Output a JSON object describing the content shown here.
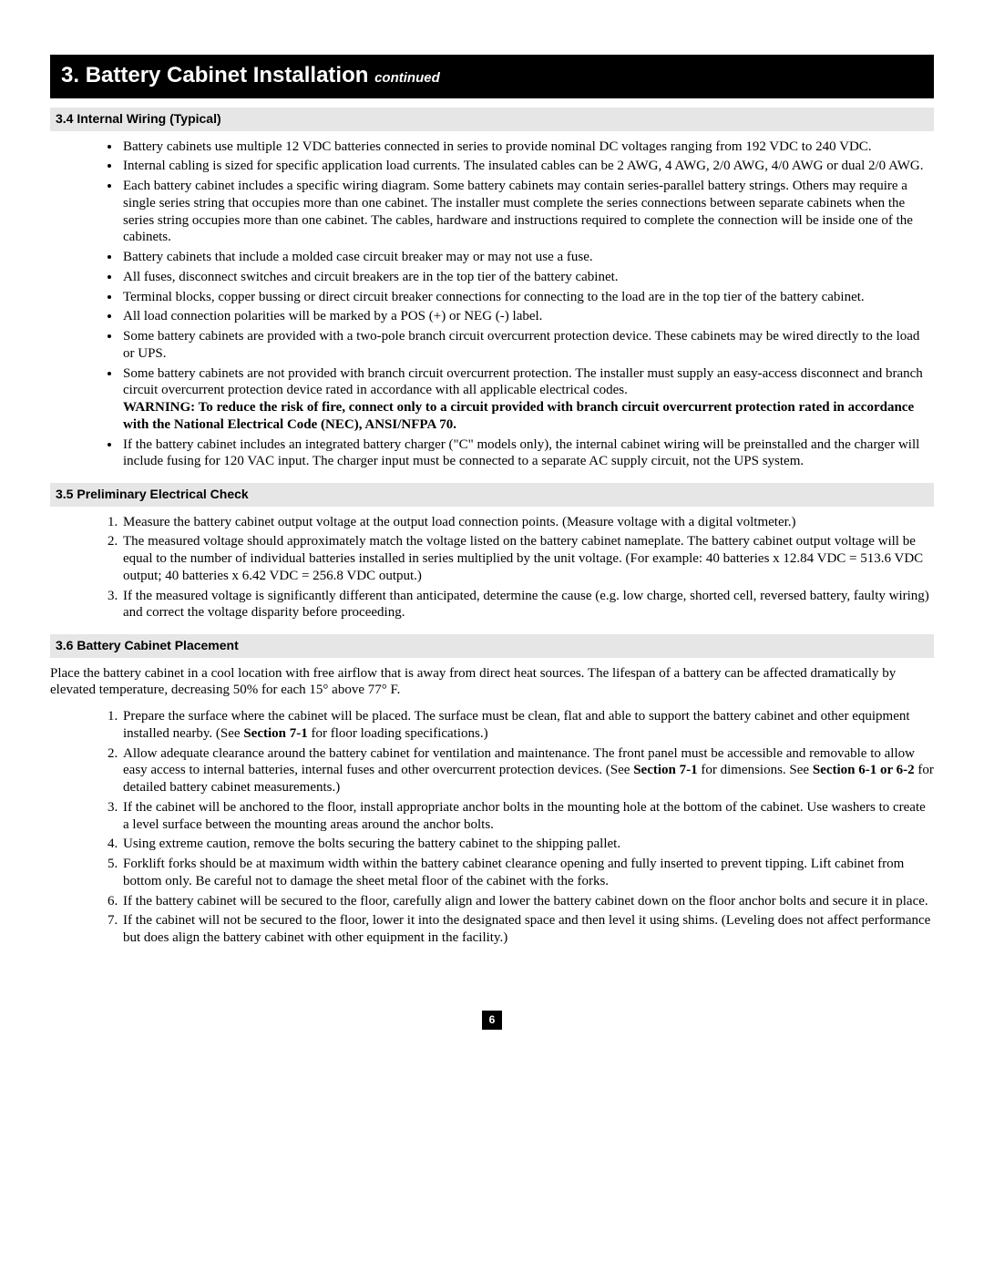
{
  "header": {
    "number": "3.",
    "title": "Battery Cabinet Installation",
    "continued": "continued"
  },
  "sections": {
    "s34": {
      "heading": "3.4 Internal Wiring (Typical)",
      "bullets": [
        "Battery cabinets use multiple 12 VDC batteries connected in series to provide nominal DC voltages ranging from 192 VDC to 240 VDC.",
        "Internal cabling is sized for specific application load currents. The insulated cables can be 2 AWG, 4 AWG, 2/0 AWG, 4/0 AWG or dual 2/0 AWG.",
        "Each battery cabinet includes a specific wiring diagram. Some battery cabinets may contain series-parallel battery strings. Others may require a single series string that occupies more than one cabinet. The installer must complete the series connections between separate cabinets when the series string occupies more than one cabinet. The cables, hardware and instructions required to complete the connection will be inside one of the cabinets.",
        "Battery cabinets that include a molded case circuit breaker may or may not use a fuse.",
        "All fuses, disconnect switches and circuit breakers are in the top tier of the battery cabinet.",
        "Terminal blocks, copper bussing or direct circuit breaker connections for connecting to the load are in the top tier of the battery cabinet.",
        "All load connection polarities will be marked by a POS (+) or NEG (-) label.",
        "Some battery cabinets are provided with a two-pole branch circuit overcurrent protection device. These cabinets may be wired directly to the load or UPS.",
        "Some battery cabinets are not provided with branch circuit overcurrent protection. The installer must supply an easy-access disconnect and branch circuit overcurrent protection device rated in accordance with all applicable electrical codes.",
        "If the battery cabinet includes an integrated battery charger (\"C\" models only), the internal cabinet wiring will be preinstalled and the charger will include fusing for 120 VAC input. The charger input must be connected to a separate AC supply circuit, not the UPS system."
      ],
      "warning": "WARNING: To reduce the risk of fire, connect only to a circuit provided with branch circuit overcurrent protection rated in accordance with the National Electrical Code (NEC), ANSI/NFPA 70."
    },
    "s35": {
      "heading": "3.5 Preliminary Electrical Check",
      "items": [
        "Measure the battery cabinet output voltage at the output load connection points. (Measure voltage with a digital voltmeter.)",
        "The measured voltage should approximately match the voltage listed on the battery cabinet nameplate. The battery cabinet output voltage will be equal to the number of individual batteries installed in series multiplied by the unit voltage. (For example: 40 batteries x 12.84 VDC = 513.6 VDC output; 40 batteries x 6.42 VDC = 256.8 VDC output.)",
        "If the measured voltage is significantly different than anticipated, determine the cause (e.g. low charge, shorted cell, reversed battery, faulty wiring) and correct the voltage disparity before proceeding."
      ]
    },
    "s36": {
      "heading": "3.6 Battery Cabinet Placement",
      "intro": "Place the battery cabinet in a cool location with free airflow that is away from direct heat sources. The lifespan of a battery can be affected dramatically by elevated temperature, decreasing 50% for each 15° above 77° F.",
      "items_pre": [
        "Prepare the surface where the cabinet will be placed. The surface must be clean, flat and able to support the battery cabinet and other equipment installed nearby. (See ",
        "Allow adequate clearance around the battery cabinet for ventilation and maintenance. The front panel must be accessible and removable to allow easy access to internal batteries, internal fuses and other overcurrent protection devices. (See ",
        "If the cabinet will be anchored to the floor, install appropriate anchor bolts in the mounting hole at the bottom of the cabinet. Use washers to create a level surface between the mounting areas around the anchor bolts.",
        "Using extreme caution, remove the bolts securing the battery cabinet to the shipping pallet.",
        "Forklift forks should be at maximum width within the battery cabinet clearance opening and fully inserted to prevent tipping. Lift cabinet from bottom only. Be careful not to damage the sheet metal floor of the cabinet with the forks.",
        "If the battery cabinet will be secured to the floor, carefully align and lower the battery cabinet down on the floor anchor bolts and secure it in place.",
        "If the cabinet will not be secured to the floor, lower it into the designated space and then level it using shims. (Leveling does not affect performance but does align the battery cabinet with other equipment in the facility.)"
      ],
      "item1_ref": "Section 7-1",
      "item1_post": " for floor loading specifications.)",
      "item2_ref1": "Section 7-1",
      "item2_mid": " for dimensions. See ",
      "item2_ref2": "Section 6-1 or 6-2",
      "item2_post": " for detailed battery cabinet measurements.)"
    }
  },
  "pageNumber": "6"
}
